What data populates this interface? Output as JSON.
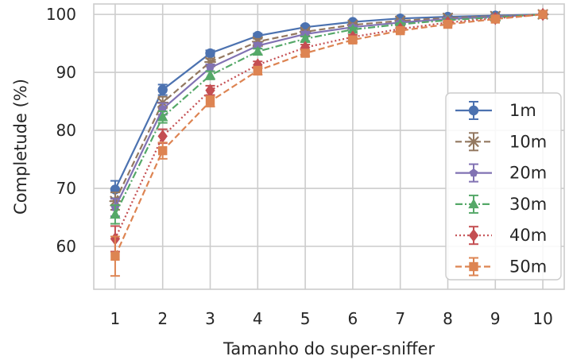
{
  "chart_data": {
    "type": "line",
    "xlabel": "Tamanho do super-sniffer",
    "ylabel": "Completude (%)",
    "x": [
      1,
      2,
      3,
      4,
      5,
      6,
      7,
      8,
      9,
      10
    ],
    "xlim": [
      0.55,
      10.45
    ],
    "ylim": [
      52.6,
      101.8
    ],
    "xticks": [
      "1",
      "2",
      "3",
      "4",
      "5",
      "6",
      "7",
      "8",
      "9",
      "10"
    ],
    "yticks": [
      "60",
      "70",
      "80",
      "90",
      "100"
    ],
    "ytick_values": [
      60,
      70,
      80,
      90,
      100
    ],
    "grid": true,
    "legend_position": "lower-right",
    "series": [
      {
        "name": "1m",
        "color": "#4c72b0",
        "marker": "circle",
        "dash": "solid",
        "values": [
          69.8,
          87.0,
          93.3,
          96.3,
          97.8,
          98.7,
          99.3,
          99.6,
          99.8,
          100.0
        ],
        "errors": [
          1.5,
          0.9,
          0.5,
          0.4,
          0.3,
          0.2,
          0.2,
          0.1,
          0.1,
          0.0
        ]
      },
      {
        "name": "10m",
        "color": "#937860",
        "marker": "x-star",
        "dash": "dashed",
        "values": [
          67.8,
          84.8,
          91.8,
          95.3,
          97.0,
          98.2,
          98.9,
          99.4,
          99.7,
          100.0
        ],
        "errors": [
          1.5,
          1.0,
          0.6,
          0.5,
          0.3,
          0.3,
          0.2,
          0.1,
          0.1,
          0.0
        ]
      },
      {
        "name": "20m",
        "color": "#8172b3",
        "marker": "pentagon",
        "dash": "solid",
        "values": [
          66.7,
          83.7,
          90.8,
          94.6,
          96.6,
          97.8,
          98.6,
          99.2,
          99.6,
          100.0
        ],
        "errors": [
          1.5,
          1.0,
          0.6,
          0.5,
          0.4,
          0.3,
          0.2,
          0.2,
          0.1,
          0.0
        ]
      },
      {
        "name": "30m",
        "color": "#55a868",
        "marker": "triangle",
        "dash": "dashdot",
        "values": [
          65.5,
          82.3,
          89.5,
          93.6,
          95.8,
          97.4,
          98.3,
          99.0,
          99.5,
          100.0
        ],
        "errors": [
          1.6,
          1.0,
          0.7,
          0.5,
          0.4,
          0.3,
          0.2,
          0.2,
          0.1,
          0.0
        ]
      },
      {
        "name": "40m",
        "color": "#c44e52",
        "marker": "diamond",
        "dash": "dotted",
        "values": [
          61.3,
          79.0,
          86.9,
          91.3,
          94.3,
          96.1,
          97.5,
          98.6,
          99.3,
          100.0
        ],
        "errors": [
          2.2,
          1.2,
          0.8,
          0.6,
          0.5,
          0.4,
          0.3,
          0.2,
          0.1,
          0.0
        ]
      },
      {
        "name": "50m",
        "color": "#dd8452",
        "marker": "square",
        "dash": "dashed",
        "values": [
          58.3,
          76.5,
          85.0,
          90.3,
          93.3,
          95.6,
          97.2,
          98.3,
          99.2,
          100.0
        ],
        "errors": [
          3.4,
          1.4,
          0.9,
          0.7,
          0.5,
          0.4,
          0.3,
          0.2,
          0.1,
          0.0
        ]
      }
    ]
  }
}
